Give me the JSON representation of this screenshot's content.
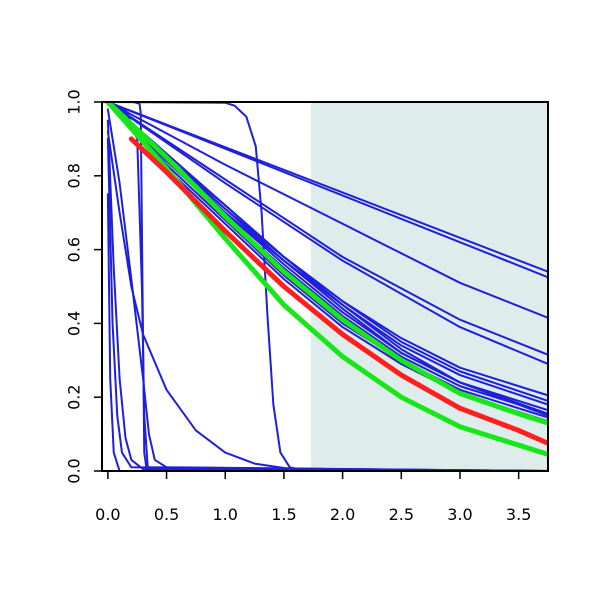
{
  "chart_data": {
    "type": "line",
    "title": "",
    "xlabel": "",
    "ylabel": "",
    "xlim": [
      -0.05,
      3.75
    ],
    "ylim": [
      0.0,
      1.0
    ],
    "x_ticks": [
      0.0,
      0.5,
      1.0,
      1.5,
      2.0,
      2.5,
      3.0,
      3.5
    ],
    "x_tick_labels": [
      "0.0",
      "0.5",
      "1.0",
      "1.5",
      "2.0",
      "2.5",
      "3.0",
      "3.5"
    ],
    "y_ticks": [
      0.0,
      0.2,
      0.4,
      0.6,
      0.8,
      1.0
    ],
    "y_tick_labels": [
      "0.0",
      "0.2",
      "0.4",
      "0.6",
      "0.8",
      "1.0"
    ],
    "shaded_region": {
      "x_start": 1.73,
      "x_end": 3.75,
      "color": "#deecec"
    },
    "grid": false,
    "colors": {
      "blue": "#1f1fdc",
      "red": "#ff1f1f",
      "green": "#19e619"
    },
    "series": [
      {
        "color": "blue",
        "width": 2,
        "points": [
          [
            0,
            1
          ],
          [
            3.75,
            0.54
          ]
        ]
      },
      {
        "color": "blue",
        "width": 2,
        "points": [
          [
            0,
            1
          ],
          [
            3.75,
            0.525
          ]
        ]
      },
      {
        "color": "blue",
        "width": 2,
        "points": [
          [
            0,
            1
          ],
          [
            1.0,
            0.83
          ],
          [
            2.0,
            0.67
          ],
          [
            3.0,
            0.51
          ],
          [
            3.75,
            0.415
          ]
        ]
      },
      {
        "color": "blue",
        "width": 2,
        "points": [
          [
            0,
            1
          ],
          [
            1.0,
            0.79
          ],
          [
            2.0,
            0.58
          ],
          [
            3.0,
            0.41
          ],
          [
            3.75,
            0.315
          ]
        ]
      },
      {
        "color": "blue",
        "width": 2,
        "points": [
          [
            0,
            1
          ],
          [
            1.0,
            0.78
          ],
          [
            2.0,
            0.57
          ],
          [
            3.0,
            0.39
          ],
          [
            3.75,
            0.29
          ]
        ]
      },
      {
        "color": "blue",
        "width": 2,
        "points": [
          [
            0,
            1
          ],
          [
            0.5,
            0.85
          ],
          [
            1.0,
            0.72
          ],
          [
            1.5,
            0.58
          ],
          [
            2.0,
            0.46
          ],
          [
            2.5,
            0.36
          ],
          [
            3.0,
            0.28
          ],
          [
            3.75,
            0.205
          ]
        ]
      },
      {
        "color": "blue",
        "width": 2,
        "points": [
          [
            0,
            1
          ],
          [
            0.5,
            0.86
          ],
          [
            1.0,
            0.72
          ],
          [
            1.5,
            0.58
          ],
          [
            2.0,
            0.46
          ],
          [
            2.5,
            0.35
          ],
          [
            3.0,
            0.27
          ],
          [
            3.75,
            0.19
          ]
        ]
      },
      {
        "color": "blue",
        "width": 2,
        "points": [
          [
            0,
            1
          ],
          [
            0.5,
            0.85
          ],
          [
            1.0,
            0.71
          ],
          [
            1.5,
            0.57
          ],
          [
            2.0,
            0.45
          ],
          [
            2.5,
            0.34
          ],
          [
            3.0,
            0.26
          ],
          [
            3.75,
            0.18
          ]
        ]
      },
      {
        "color": "blue",
        "width": 2,
        "points": [
          [
            0,
            1
          ],
          [
            0.5,
            0.85
          ],
          [
            1.0,
            0.7
          ],
          [
            1.5,
            0.56
          ],
          [
            2.0,
            0.43
          ],
          [
            2.5,
            0.32
          ],
          [
            3.0,
            0.24
          ],
          [
            3.75,
            0.165
          ]
        ]
      },
      {
        "color": "blue",
        "width": 2,
        "points": [
          [
            0,
            1
          ],
          [
            0.5,
            0.84
          ],
          [
            1.0,
            0.69
          ],
          [
            1.5,
            0.55
          ],
          [
            2.0,
            0.42
          ],
          [
            2.5,
            0.31
          ],
          [
            3.0,
            0.23
          ],
          [
            3.75,
            0.155
          ]
        ]
      },
      {
        "color": "blue",
        "width": 2,
        "points": [
          [
            0,
            1
          ],
          [
            0.5,
            0.83
          ],
          [
            1.0,
            0.68
          ],
          [
            1.5,
            0.53
          ],
          [
            2.0,
            0.4
          ],
          [
            2.5,
            0.3
          ],
          [
            3.0,
            0.22
          ],
          [
            3.75,
            0.145
          ]
        ]
      },
      {
        "color": "blue",
        "width": 2,
        "points": [
          [
            0,
            1
          ],
          [
            0.5,
            0.82
          ],
          [
            1.0,
            0.67
          ],
          [
            1.5,
            0.52
          ],
          [
            2.0,
            0.39
          ],
          [
            2.5,
            0.29
          ],
          [
            3.0,
            0.21
          ],
          [
            3.75,
            0.135
          ]
        ]
      },
      {
        "color": "blue",
        "width": 2,
        "points": [
          [
            0,
            1
          ],
          [
            0.5,
            0.85
          ],
          [
            1.0,
            0.71
          ],
          [
            1.5,
            0.58
          ],
          [
            2.0,
            0.45
          ],
          [
            2.5,
            0.33
          ],
          [
            3.0,
            0.24
          ],
          [
            3.75,
            0.155
          ]
        ]
      },
      {
        "color": "blue",
        "width": 2,
        "points": [
          [
            0,
            1
          ],
          [
            0.5,
            0.84
          ],
          [
            1.0,
            0.7
          ],
          [
            1.5,
            0.57
          ],
          [
            2.0,
            0.44
          ],
          [
            2.5,
            0.32
          ],
          [
            3.0,
            0.24
          ],
          [
            3.75,
            0.15
          ]
        ]
      },
      {
        "color": "blue",
        "width": 2,
        "points": [
          [
            0.22,
            1
          ],
          [
            0.27,
            0.995
          ],
          [
            0.28,
            0.97
          ],
          [
            0.295,
            0.5
          ],
          [
            0.31,
            0.05
          ],
          [
            0.33,
            0.005
          ],
          [
            3.75,
            0
          ]
        ]
      },
      {
        "color": "blue",
        "width": 2,
        "points": [
          [
            0,
            1
          ],
          [
            1.0,
            0.998
          ],
          [
            1.08,
            0.99
          ],
          [
            1.18,
            0.96
          ],
          [
            1.26,
            0.88
          ],
          [
            1.31,
            0.7
          ],
          [
            1.36,
            0.42
          ],
          [
            1.41,
            0.18
          ],
          [
            1.47,
            0.05
          ],
          [
            1.55,
            0.01
          ],
          [
            1.7,
            0
          ],
          [
            3.75,
            0
          ]
        ]
      },
      {
        "color": "blue",
        "width": 2,
        "points": [
          [
            0,
            1
          ],
          [
            0.15,
            0.98
          ],
          [
            0.25,
            0.9
          ],
          [
            0.29,
            0.5
          ],
          [
            0.31,
            0.15
          ],
          [
            0.34,
            0.01
          ],
          [
            3.75,
            0
          ]
        ]
      },
      {
        "color": "blue",
        "width": 2,
        "points": [
          [
            0,
            0.92
          ],
          [
            0.1,
            0.7
          ],
          [
            0.2,
            0.5
          ],
          [
            0.3,
            0.37
          ],
          [
            0.5,
            0.22
          ],
          [
            0.75,
            0.11
          ],
          [
            1.0,
            0.05
          ],
          [
            1.25,
            0.02
          ],
          [
            1.5,
            0.008
          ],
          [
            1.75,
            0
          ],
          [
            3.75,
            0
          ]
        ]
      },
      {
        "color": "blue",
        "width": 2,
        "points": [
          [
            0,
            0.95
          ],
          [
            0.05,
            0.55
          ],
          [
            0.1,
            0.25
          ],
          [
            0.15,
            0.09
          ],
          [
            0.2,
            0.03
          ],
          [
            0.3,
            0.005
          ],
          [
            3.75,
            0
          ]
        ]
      },
      {
        "color": "blue",
        "width": 2,
        "points": [
          [
            0,
            0.9
          ],
          [
            0.04,
            0.4
          ],
          [
            0.08,
            0.15
          ],
          [
            0.12,
            0.05
          ],
          [
            0.2,
            0.01
          ],
          [
            3.75,
            0
          ]
        ]
      },
      {
        "color": "blue",
        "width": 2,
        "points": [
          [
            0,
            0.75
          ],
          [
            0.02,
            0.25
          ],
          [
            0.05,
            0.05
          ],
          [
            0.1,
            0
          ],
          [
            3.75,
            0
          ]
        ]
      },
      {
        "color": "blue",
        "width": 2,
        "points": [
          [
            0,
            0.98
          ],
          [
            0.1,
            0.78
          ],
          [
            0.2,
            0.52
          ],
          [
            0.3,
            0.25
          ],
          [
            0.35,
            0.1
          ],
          [
            0.4,
            0.03
          ],
          [
            0.5,
            0.01
          ],
          [
            3.75,
            0
          ]
        ]
      },
      {
        "color": "green",
        "width": 5,
        "points": [
          [
            0,
            1
          ],
          [
            0.5,
            0.85
          ],
          [
            1.0,
            0.69
          ],
          [
            1.5,
            0.54
          ],
          [
            2.0,
            0.41
          ],
          [
            2.5,
            0.3
          ],
          [
            3.0,
            0.21
          ],
          [
            3.5,
            0.155
          ],
          [
            3.75,
            0.13
          ]
        ]
      },
      {
        "color": "green",
        "width": 5,
        "points": [
          [
            0,
            1
          ],
          [
            0.5,
            0.82
          ],
          [
            1.0,
            0.63
          ],
          [
            1.5,
            0.45
          ],
          [
            2.0,
            0.31
          ],
          [
            2.5,
            0.2
          ],
          [
            3.0,
            0.12
          ],
          [
            3.5,
            0.07
          ],
          [
            3.75,
            0.045
          ]
        ]
      },
      {
        "color": "red",
        "width": 5,
        "points": [
          [
            0.2,
            0.9
          ],
          [
            0.5,
            0.81
          ],
          [
            1.0,
            0.65
          ],
          [
            1.5,
            0.5
          ],
          [
            2.0,
            0.37
          ],
          [
            2.5,
            0.26
          ],
          [
            3.0,
            0.17
          ],
          [
            3.5,
            0.11
          ],
          [
            3.75,
            0.075
          ]
        ]
      }
    ]
  }
}
